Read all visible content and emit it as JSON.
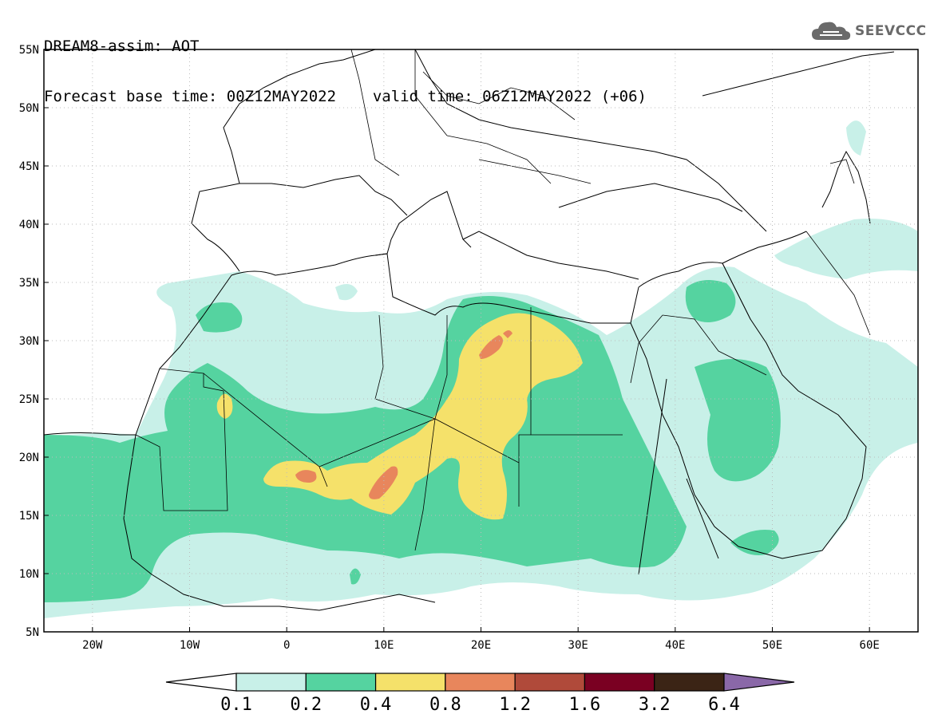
{
  "header": {
    "title": "DREAM8-assim: AOT",
    "base_label": "Forecast base time: 00Z12MAY2022",
    "valid_label": "valid time: 06Z12MAY2022 (+06)"
  },
  "logo": {
    "text": "SEEVCCC",
    "icon": "cloud-icon"
  },
  "map": {
    "lat_labels": [
      "55N",
      "50N",
      "45N",
      "40N",
      "35N",
      "30N",
      "25N",
      "20N",
      "15N",
      "10N",
      "5N"
    ],
    "lon_labels": [
      "20W",
      "10W",
      "0",
      "10E",
      "20E",
      "30E",
      "40E",
      "50E",
      "60E"
    ],
    "lat_range": [
      5,
      55
    ],
    "lon_range": [
      -25,
      65
    ],
    "grid": true
  },
  "colorbar": {
    "labels": [
      "0.1",
      "0.2",
      "0.4",
      "0.8",
      "1.2",
      "1.6",
      "3.2",
      "6.4"
    ],
    "colors": [
      "#ffffff",
      "#c8f0e8",
      "#55d3a0",
      "#f5e16a",
      "#e8865c",
      "#b04a3a",
      "#7a0022",
      "#3b2415",
      "#8a68a8"
    ]
  },
  "colors": {
    "light": "#c8f0e8",
    "mid": "#55d3a0",
    "yellow": "#f5e16a",
    "orange": "#e8865c"
  }
}
